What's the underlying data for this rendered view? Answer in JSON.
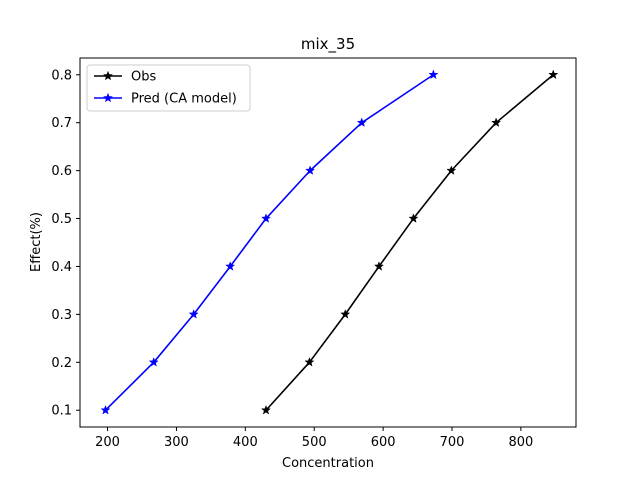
{
  "chart_data": {
    "type": "line",
    "title": "mix_35",
    "xlabel": "Concentration",
    "ylabel": "Effect(%)",
    "xlim": [
      160,
      880
    ],
    "ylim": [
      0.065,
      0.835
    ],
    "xticks": [
      200,
      300,
      400,
      500,
      600,
      700,
      800
    ],
    "yticks": [
      0.1,
      0.2,
      0.3,
      0.4,
      0.5,
      0.6,
      0.7,
      0.8
    ],
    "grid": false,
    "legend_position": "top-left",
    "series": [
      {
        "name": "Obs",
        "color": "#000000",
        "marker": "star",
        "x": [
          430,
          493,
          545,
          594,
          644,
          699,
          764,
          847
        ],
        "y": [
          0.1,
          0.2,
          0.3,
          0.4,
          0.5,
          0.6,
          0.7,
          0.8
        ]
      },
      {
        "name": "Pred (CA model)",
        "color": "#0000ff",
        "marker": "star",
        "x": [
          197,
          267,
          325,
          378,
          430,
          494,
          569,
          673
        ],
        "y": [
          0.1,
          0.2,
          0.3,
          0.4,
          0.5,
          0.6,
          0.7,
          0.8
        ]
      }
    ]
  }
}
